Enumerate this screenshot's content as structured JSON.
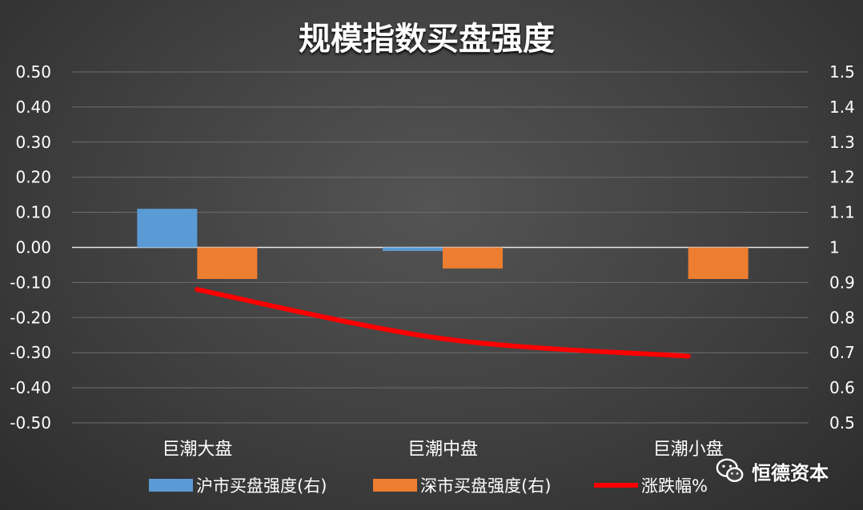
{
  "chart_data": {
    "type": "bar",
    "title": "规模指数买盘强度",
    "categories": [
      "巨潮大盘",
      "巨潮中盘",
      "巨潮小盘"
    ],
    "series": [
      {
        "name": "沪市买盘强度(右)",
        "type": "bar",
        "axis": "right",
        "color": "#5b9bd5",
        "values": [
          1.11,
          0.99,
          1.0
        ]
      },
      {
        "name": "深市买盘强度(右)",
        "type": "bar",
        "axis": "right",
        "color": "#ed7d31",
        "values": [
          0.91,
          0.94,
          0.91
        ]
      },
      {
        "name": "涨跌幅%",
        "type": "line",
        "axis": "left",
        "color": "#ff0000",
        "values": [
          -0.12,
          -0.26,
          -0.31
        ]
      }
    ],
    "y_left": {
      "range": [
        -0.5,
        0.5
      ],
      "ticks": [
        "0.50",
        "0.40",
        "0.30",
        "0.20",
        "0.10",
        "0.00",
        "-0.10",
        "-0.20",
        "-0.30",
        "-0.40",
        "-0.50"
      ]
    },
    "y_right": {
      "range": [
        0.5,
        1.5
      ],
      "ticks": [
        "1.5",
        "1.4",
        "1.3",
        "1.2",
        "1.1",
        "1",
        "0.9",
        "0.8",
        "0.7",
        "0.6",
        "0.5"
      ]
    },
    "grid": true,
    "legend_position": "bottom"
  },
  "watermark": {
    "text": "恒德资本",
    "icon": "wechat-icon"
  }
}
